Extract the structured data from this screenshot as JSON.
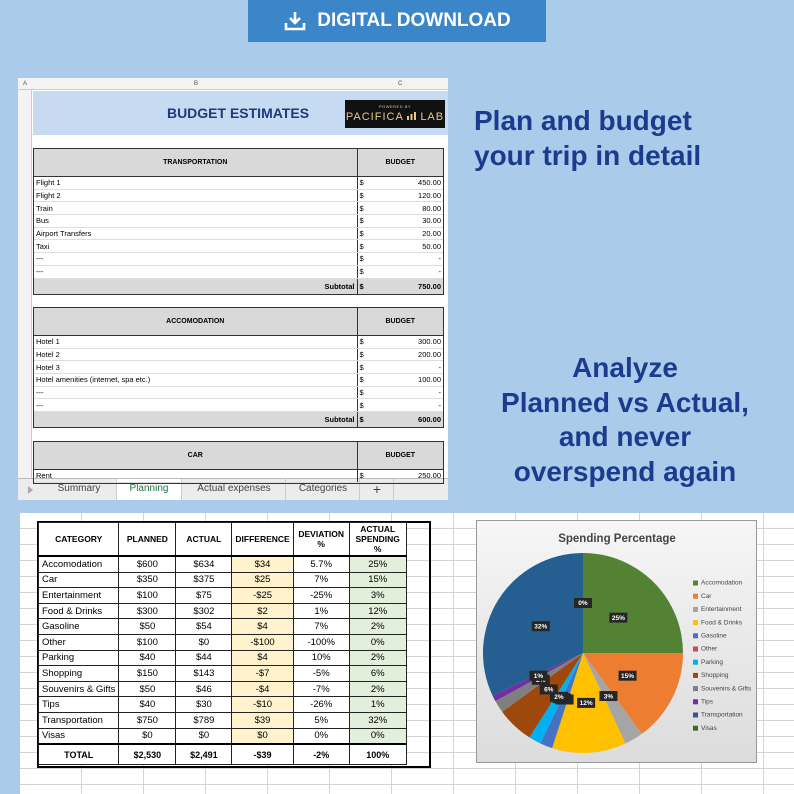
{
  "banner": {
    "text": "DIGITAL DOWNLOAD"
  },
  "headline_plan": [
    "Plan and budget",
    "your trip in detail"
  ],
  "headline_analyze": [
    "Analyze",
    "Planned vs Actual,",
    "and never",
    "overspend again"
  ],
  "planning_sheet": {
    "columns": [
      "A",
      "B",
      "C"
    ],
    "title": "BUDGET ESTIMATES",
    "logo": {
      "caption": "POWERED BY",
      "name": [
        "PACIFICA",
        "LAB"
      ]
    },
    "sections": [
      {
        "header": [
          "TRANSPORTATION",
          "BUDGET"
        ],
        "rows": [
          [
            "Flight 1",
            "$",
            "450.00"
          ],
          [
            "Flight 2",
            "$",
            "120.00"
          ],
          [
            "Train",
            "$",
            "80.00"
          ],
          [
            "Bus",
            "$",
            "30.00"
          ],
          [
            "Airport Transfers",
            "$",
            "20.00"
          ],
          [
            "Taxi",
            "$",
            "50.00"
          ],
          [
            "---",
            "$",
            "-"
          ],
          [
            "---",
            "$",
            "-"
          ]
        ],
        "subtotal": [
          "Subtotal",
          "$",
          "750.00"
        ]
      },
      {
        "header": [
          "ACCOMODATION",
          "BUDGET"
        ],
        "rows": [
          [
            "Hotel 1",
            "$",
            "300.00"
          ],
          [
            "Hotel 2",
            "$",
            "200.00"
          ],
          [
            "Hotel 3",
            "$",
            "-"
          ],
          [
            "Hotel amenities (internet, spa etc.)",
            "$",
            "100.00"
          ],
          [
            "---",
            "$",
            "-"
          ],
          [
            "---",
            "$",
            "-"
          ]
        ],
        "subtotal": [
          "Subtotal",
          "$",
          "600.00"
        ]
      },
      {
        "header": [
          "CAR",
          "BUDGET"
        ],
        "rows": [
          [
            "Rent",
            "$",
            "250.00"
          ]
        ]
      }
    ],
    "tabs": [
      "Summary",
      "Planning",
      "Actual expenses",
      "Categories",
      "+"
    ]
  },
  "summary_table": {
    "header": [
      "CATEGORY",
      "PLANNED",
      "ACTUAL",
      "DIFFERENCE",
      "DEVIATION %",
      "ACTUAL SPENDING %"
    ],
    "rows": [
      [
        "Accomodation",
        "$600",
        "$634",
        "$34",
        "5.7%",
        "25%"
      ],
      [
        "Car",
        "$350",
        "$375",
        "$25",
        "7%",
        "15%"
      ],
      [
        "Entertainment",
        "$100",
        "$75",
        "-$25",
        "-25%",
        "3%"
      ],
      [
        "Food & Drinks",
        "$300",
        "$302",
        "$2",
        "1%",
        "12%"
      ],
      [
        "Gasoline",
        "$50",
        "$54",
        "$4",
        "7%",
        "2%"
      ],
      [
        "Other",
        "$100",
        "$0",
        "-$100",
        "-100%",
        "0%"
      ],
      [
        "Parking",
        "$40",
        "$44",
        "$4",
        "10%",
        "2%"
      ],
      [
        "Shopping",
        "$150",
        "$143",
        "-$7",
        "-5%",
        "6%"
      ],
      [
        "Souvenirs & Gifts",
        "$50",
        "$46",
        "-$4",
        "-7%",
        "2%"
      ],
      [
        "Tips",
        "$40",
        "$30",
        "-$10",
        "-26%",
        "1%"
      ],
      [
        "Transportation",
        "$750",
        "$789",
        "$39",
        "5%",
        "32%"
      ],
      [
        "Visas",
        "$0",
        "$0",
        "$0",
        "0%",
        "0%"
      ]
    ],
    "total": [
      "TOTAL",
      "$2,530",
      "$2,491",
      "-$39",
      "-2%",
      "100%"
    ]
  },
  "chart_data": {
    "type": "pie",
    "title": "Spending Percentage",
    "categories": [
      "Accomodation",
      "Car",
      "Entertainment",
      "Food & Drinks",
      "Gasoline",
      "Other",
      "Parking",
      "Shopping",
      "Souvenirs & Gifts",
      "Tips",
      "Transportation",
      "Visas"
    ],
    "values": [
      25,
      15,
      3,
      12,
      2,
      0,
      2,
      6,
      2,
      1,
      32,
      0
    ],
    "value_labels": [
      "25%",
      "15%",
      "3%",
      "12%",
      "2%",
      "0%",
      "2%",
      "6%",
      "2%",
      "1%",
      "32%",
      "0%"
    ],
    "colors": [
      "#548235",
      "#ed7d31",
      "#a5a5a5",
      "#ffc000",
      "#4472c4",
      "#c0504d",
      "#00b0f0",
      "#9e480e",
      "#7f7f7f",
      "#7030a0",
      "#255e91",
      "#43682b"
    ],
    "legend": "right"
  }
}
